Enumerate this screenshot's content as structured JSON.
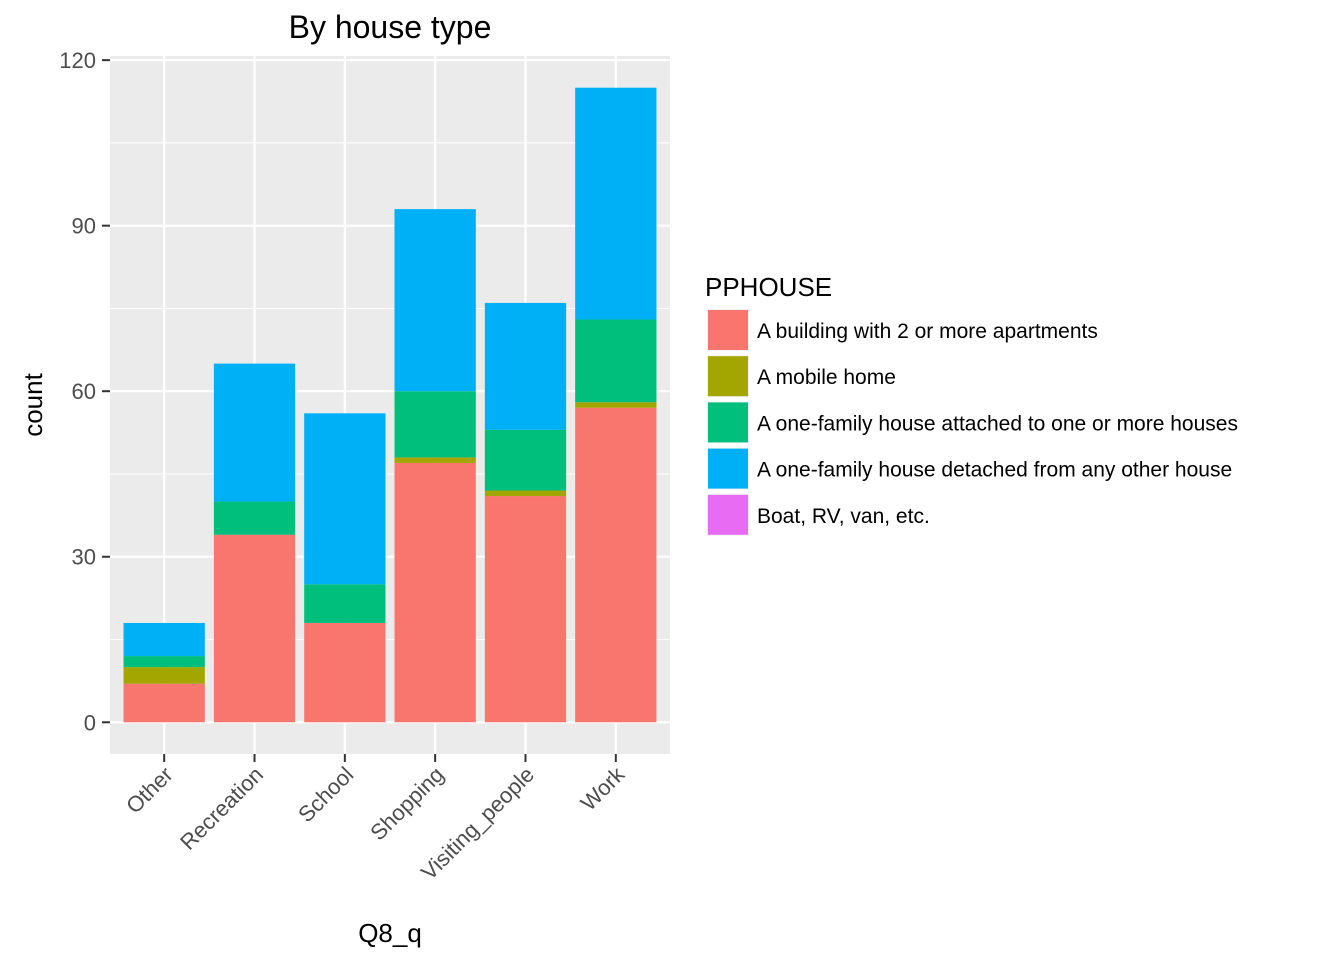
{
  "chart_data": {
    "type": "bar",
    "stacked": true,
    "title": "By house type",
    "xlabel": "Q8_q",
    "ylabel": "count",
    "ylim": [
      -5.75,
      120.75
    ],
    "yticks": [
      0,
      30,
      60,
      90,
      120
    ],
    "grid": true,
    "legend": {
      "title": "PPHOUSE",
      "placement": "right"
    },
    "categories": [
      "Other",
      "Recreation",
      "School",
      "Shopping",
      "Visiting_people",
      "Work"
    ],
    "series": [
      {
        "name": "A building with 2 or more apartments",
        "color": "#F8766D",
        "values": [
          7,
          34,
          18,
          47,
          41,
          57
        ]
      },
      {
        "name": "A mobile home",
        "color": "#A3A500",
        "values": [
          3,
          0,
          0,
          1,
          1,
          1
        ]
      },
      {
        "name": "A one-family house attached to one or more houses",
        "color": "#00BF7D",
        "values": [
          2,
          6,
          7,
          12,
          11,
          15
        ]
      },
      {
        "name": "A one-family house detached from any other house",
        "color": "#00B0F6",
        "values": [
          6,
          25,
          31,
          33,
          23,
          42
        ]
      },
      {
        "name": "Boat, RV, van, etc.",
        "color": "#E76BF3",
        "values": [
          0,
          0,
          0,
          0,
          0,
          0
        ]
      }
    ]
  }
}
